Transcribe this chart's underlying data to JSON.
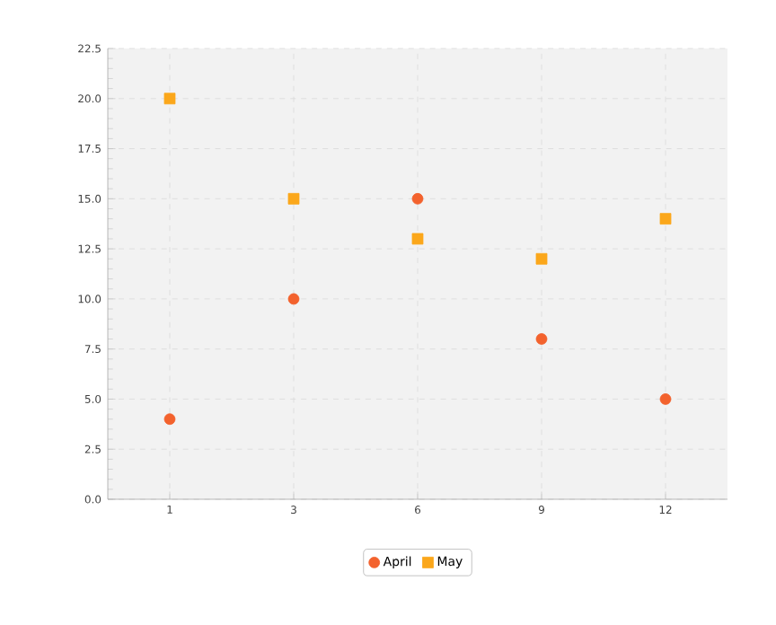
{
  "chart_data": {
    "type": "scatter",
    "categories": [
      "1",
      "3",
      "6",
      "9",
      "12"
    ],
    "series": [
      {
        "name": "April",
        "color": "#f3622d",
        "marker": "circle",
        "values": [
          4,
          10,
          15,
          8,
          5
        ]
      },
      {
        "name": "May",
        "color": "#fba71b",
        "marker": "square",
        "values": [
          20,
          15,
          13,
          12,
          14
        ]
      }
    ],
    "ylim": [
      0,
      22.5
    ],
    "yticks": [
      {
        "value": 0,
        "label": "0.0"
      },
      {
        "value": 2.5,
        "label": "2.5"
      },
      {
        "value": 5,
        "label": "5.0"
      },
      {
        "value": 7.5,
        "label": "7.5"
      },
      {
        "value": 10,
        "label": "10.0"
      },
      {
        "value": 12.5,
        "label": "12.5"
      },
      {
        "value": 15,
        "label": "15.0"
      },
      {
        "value": 17.5,
        "label": "17.5"
      },
      {
        "value": 20,
        "label": "20.0"
      },
      {
        "value": 22.5,
        "label": "22.5"
      }
    ],
    "grid": true,
    "legend": "bottom"
  }
}
